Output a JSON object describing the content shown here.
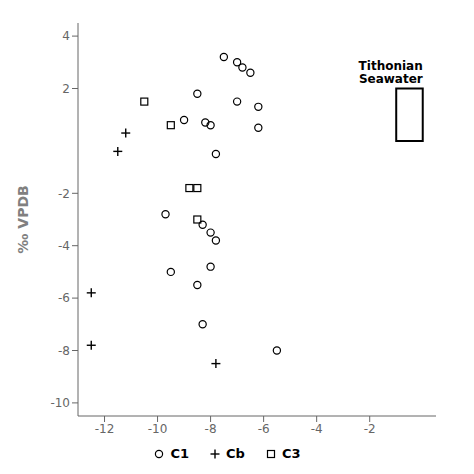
{
  "chart_data": {
    "type": "scatter",
    "y_label": "‰ VPDB",
    "xlim": [
      -13,
      0.5
    ],
    "ylim": [
      -10.5,
      4.5
    ],
    "xticks": [
      -12,
      -10,
      -8,
      -6,
      -4,
      -2
    ],
    "yticks": [
      -10,
      -8,
      -6,
      -4,
      -2,
      2,
      4
    ],
    "legend": "bottom",
    "series": [
      {
        "name": "C1",
        "marker": "circle",
        "color": "#000000",
        "x": [
          -7.5,
          -7.0,
          -6.8,
          -6.5,
          -8.5,
          -7.0,
          -6.2,
          -9.0,
          -8.2,
          -8.0,
          -6.2,
          -7.8,
          -9.7,
          -8.0,
          -7.8,
          -8.3,
          -8.0,
          -9.5,
          -8.5,
          -8.3,
          -5.5
        ],
        "values": [
          3.2,
          3.0,
          2.8,
          2.6,
          1.8,
          1.5,
          1.3,
          0.8,
          0.7,
          0.6,
          0.5,
          -0.5,
          -2.8,
          -3.5,
          -3.8,
          -3.2,
          -4.8,
          -5.0,
          -5.5,
          -7.0,
          -8.0
        ]
      },
      {
        "name": "Cb",
        "marker": "plus",
        "color": "#000000",
        "x": [
          -11.2,
          -11.5,
          -12.5,
          -12.5,
          -7.8
        ],
        "values": [
          0.3,
          -0.4,
          -5.8,
          -7.8,
          -8.5
        ]
      },
      {
        "name": "C3",
        "marker": "square",
        "color": "#000000",
        "x": [
          -10.5,
          -9.5,
          -8.8,
          -8.5,
          -8.5
        ],
        "values": [
          1.5,
          0.6,
          -1.8,
          -1.8,
          -3.0
        ]
      }
    ],
    "annotations": [
      {
        "text": "Tithonian\nSeawater",
        "x": [
          -1,
          0
        ],
        "y": [
          0,
          2
        ]
      }
    ]
  }
}
